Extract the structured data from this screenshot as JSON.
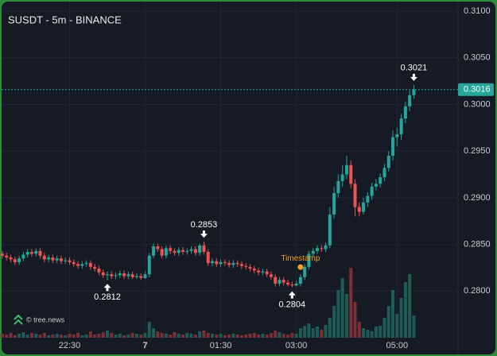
{
  "chart_data": {
    "type": "candlestick",
    "title": "SUSDT - 5m - BINANCE",
    "watermark": "© tree.news",
    "x": [
      "21:10",
      "21:15",
      "21:20",
      "21:25",
      "21:30",
      "21:35",
      "21:40",
      "21:45",
      "21:50",
      "21:55",
      "22:00",
      "22:05",
      "22:10",
      "22:15",
      "22:20",
      "22:25",
      "22:30",
      "22:35",
      "22:40",
      "22:45",
      "22:50",
      "22:55",
      "23:00",
      "23:05",
      "23:10",
      "23:15",
      "23:20",
      "23:25",
      "23:30",
      "23:35",
      "23:40",
      "23:45",
      "23:50",
      "23:55",
      "00:00",
      "00:05",
      "00:10",
      "00:15",
      "00:20",
      "00:25",
      "00:30",
      "00:35",
      "00:40",
      "00:45",
      "00:50",
      "00:55",
      "01:00",
      "01:05",
      "01:10",
      "01:15",
      "01:20",
      "01:25",
      "01:30",
      "01:35",
      "01:40",
      "01:45",
      "01:50",
      "01:55",
      "02:00",
      "02:05",
      "02:10",
      "02:15",
      "02:20",
      "02:25",
      "02:30",
      "02:35",
      "02:40",
      "02:45",
      "02:50",
      "02:55",
      "03:00",
      "03:05",
      "03:10",
      "03:15",
      "03:20",
      "03:25",
      "03:30",
      "03:35",
      "03:40",
      "03:45",
      "03:50",
      "03:55",
      "04:00",
      "04:05",
      "04:10",
      "04:15",
      "04:20",
      "04:25",
      "04:30",
      "04:35",
      "04:40",
      "04:45",
      "04:50",
      "04:55",
      "05:00",
      "05:05",
      "05:10",
      "05:15",
      "05:20"
    ],
    "open": [
      0.284,
      0.2838,
      0.2836,
      0.2834,
      0.2831,
      0.2835,
      0.2839,
      0.2842,
      0.284,
      0.2843,
      0.2838,
      0.2834,
      0.2836,
      0.2833,
      0.2835,
      0.2832,
      0.2833,
      0.2831,
      0.2829,
      0.2827,
      0.2829,
      0.283,
      0.2826,
      0.2824,
      0.282,
      0.2817,
      0.2818,
      0.2816,
      0.2817,
      0.2819,
      0.2816,
      0.2818,
      0.2815,
      0.2816,
      0.2814,
      0.2818,
      0.2838,
      0.2848,
      0.2845,
      0.2838,
      0.2846,
      0.2843,
      0.2841,
      0.2844,
      0.2842,
      0.2843,
      0.2845,
      0.2841,
      0.2849,
      0.2842,
      0.283,
      0.2832,
      0.2829,
      0.2831,
      0.283,
      0.2828,
      0.283,
      0.2829,
      0.2827,
      0.2826,
      0.2824,
      0.2822,
      0.282,
      0.2821,
      0.2818,
      0.2815,
      0.2808,
      0.2812,
      0.2809,
      0.2807,
      0.2806,
      0.2808,
      0.2815,
      0.2826,
      0.284,
      0.2843,
      0.2846,
      0.2845,
      0.2849,
      0.2882,
      0.2905,
      0.2918,
      0.2925,
      0.2935,
      0.2915,
      0.289,
      0.2885,
      0.2895,
      0.2902,
      0.2912,
      0.2915,
      0.2922,
      0.2932,
      0.2945,
      0.2965,
      0.2968,
      0.2985,
      0.2998,
      0.301
    ],
    "high": [
      0.2843,
      0.2841,
      0.2839,
      0.2837,
      0.2838,
      0.2842,
      0.2845,
      0.2845,
      0.2846,
      0.2846,
      0.2841,
      0.2839,
      0.2839,
      0.2838,
      0.2838,
      0.2836,
      0.2836,
      0.2834,
      0.2832,
      0.2832,
      0.2833,
      0.2833,
      0.2829,
      0.2827,
      0.2823,
      0.2821,
      0.2821,
      0.282,
      0.2822,
      0.2822,
      0.2821,
      0.2821,
      0.2819,
      0.2819,
      0.2821,
      0.2841,
      0.2851,
      0.2851,
      0.2848,
      0.2849,
      0.2849,
      0.2846,
      0.2847,
      0.2847,
      0.2846,
      0.2848,
      0.2848,
      0.2851,
      0.2853,
      0.2845,
      0.2835,
      0.2835,
      0.2834,
      0.2834,
      0.2833,
      0.2833,
      0.2833,
      0.2832,
      0.283,
      0.2829,
      0.2827,
      0.2825,
      0.2824,
      0.2824,
      0.2821,
      0.2818,
      0.2815,
      0.2815,
      0.2812,
      0.281,
      0.2811,
      0.2818,
      0.2829,
      0.2843,
      0.2846,
      0.2849,
      0.2849,
      0.2852,
      0.289,
      0.2912,
      0.2925,
      0.2935,
      0.2945,
      0.294,
      0.292,
      0.2895,
      0.29,
      0.2906,
      0.2916,
      0.292,
      0.2926,
      0.2936,
      0.295,
      0.2972,
      0.2975,
      0.299,
      0.3003,
      0.3015,
      0.3021
    ],
    "low": [
      0.2835,
      0.2833,
      0.2831,
      0.2828,
      0.2828,
      0.2832,
      0.2836,
      0.2837,
      0.2837,
      0.2835,
      0.2831,
      0.2831,
      0.283,
      0.283,
      0.2829,
      0.2829,
      0.2828,
      0.2826,
      0.2824,
      0.2824,
      0.2826,
      0.2823,
      0.2821,
      0.2817,
      0.2814,
      0.2812,
      0.2813,
      0.2813,
      0.2814,
      0.2813,
      0.2813,
      0.2813,
      0.2813,
      0.2812,
      0.2813,
      0.2815,
      0.2835,
      0.2842,
      0.2835,
      0.2835,
      0.284,
      0.2838,
      0.2838,
      0.2839,
      0.2839,
      0.284,
      0.2838,
      0.2838,
      0.2839,
      0.2827,
      0.2827,
      0.2826,
      0.2826,
      0.2827,
      0.2825,
      0.2825,
      0.2826,
      0.2824,
      0.2823,
      0.2821,
      0.2819,
      0.2817,
      0.2817,
      0.2815,
      0.2812,
      0.2805,
      0.2805,
      0.2806,
      0.2805,
      0.2804,
      0.2805,
      0.2805,
      0.2812,
      0.2823,
      0.2837,
      0.284,
      0.2842,
      0.2842,
      0.2846,
      0.2878,
      0.29,
      0.2912,
      0.292,
      0.291,
      0.288,
      0.288,
      0.2882,
      0.289,
      0.2898,
      0.2908,
      0.2911,
      0.2918,
      0.2928,
      0.294,
      0.2955,
      0.2962,
      0.298,
      0.2993,
      0.3006
    ],
    "close": [
      0.2838,
      0.2836,
      0.2834,
      0.2831,
      0.2835,
      0.2839,
      0.2842,
      0.284,
      0.2843,
      0.2838,
      0.2834,
      0.2836,
      0.2833,
      0.2835,
      0.2832,
      0.2833,
      0.2831,
      0.2829,
      0.2827,
      0.2829,
      0.283,
      0.2826,
      0.2824,
      0.282,
      0.2817,
      0.2818,
      0.2816,
      0.2817,
      0.2819,
      0.2816,
      0.2818,
      0.2815,
      0.2816,
      0.2814,
      0.2818,
      0.2838,
      0.2848,
      0.2845,
      0.2838,
      0.2846,
      0.2843,
      0.2841,
      0.2844,
      0.2842,
      0.2843,
      0.2845,
      0.2841,
      0.2849,
      0.2842,
      0.283,
      0.2832,
      0.2829,
      0.2831,
      0.283,
      0.2828,
      0.283,
      0.2829,
      0.2827,
      0.2826,
      0.2824,
      0.2822,
      0.282,
      0.2821,
      0.2818,
      0.2815,
      0.2808,
      0.2812,
      0.2809,
      0.2807,
      0.2806,
      0.2808,
      0.2815,
      0.2826,
      0.284,
      0.2843,
      0.2846,
      0.2845,
      0.2849,
      0.2882,
      0.2905,
      0.2918,
      0.2925,
      0.2935,
      0.2915,
      0.289,
      0.2885,
      0.2895,
      0.2902,
      0.2912,
      0.2915,
      0.2922,
      0.2932,
      0.2945,
      0.2965,
      0.2968,
      0.2985,
      0.2998,
      0.301,
      0.3016
    ],
    "volume": [
      5,
      4,
      6,
      3,
      5,
      7,
      4,
      6,
      5,
      4,
      6,
      3,
      4,
      5,
      4,
      3,
      5,
      4,
      6,
      3,
      4,
      8,
      4,
      5,
      7,
      9,
      6,
      4,
      5,
      3,
      4,
      6,
      5,
      4,
      6,
      20,
      12,
      8,
      6,
      5,
      4,
      7,
      5,
      4,
      6,
      5,
      4,
      8,
      9,
      6,
      5,
      4,
      5,
      3,
      4,
      5,
      4,
      3,
      4,
      5,
      6,
      4,
      5,
      4,
      6,
      9,
      7,
      5,
      4,
      6,
      5,
      12,
      15,
      18,
      12,
      14,
      10,
      16,
      25,
      40,
      60,
      75,
      55,
      88,
      45,
      20,
      12,
      10,
      8,
      14,
      15,
      25,
      40,
      60,
      30,
      50,
      70,
      80,
      28
    ],
    "up_color": "#26a69a",
    "down_color": "#ef5350",
    "volume_up_color": "#1d5c57",
    "volume_down_color": "#7a2f35",
    "ylim": [
      0.275,
      0.3112
    ],
    "volume_lim": [
      0,
      100
    ],
    "yticks": [
      {
        "value": 0.28,
        "label": "0.2800"
      },
      {
        "value": 0.285,
        "label": "0.2850"
      },
      {
        "value": 0.29,
        "label": "0.2900"
      },
      {
        "value": 0.295,
        "label": "0.2950"
      },
      {
        "value": 0.3,
        "label": "0.3000"
      },
      {
        "value": 0.305,
        "label": "0.3050"
      },
      {
        "value": 0.31,
        "label": "0.3100"
      }
    ],
    "xticks": [
      "22:30",
      {
        "value": "00:00",
        "label": "7"
      },
      "01:30",
      "03:00",
      "05:00"
    ],
    "grid": true,
    "last_price": {
      "value": 0.3016,
      "label": "0.3016"
    },
    "annotations": [
      {
        "label": "0.2812",
        "value": 0.2812,
        "x": "23:15"
      },
      {
        "label": "0.2853",
        "value": 0.2853,
        "x": "01:10"
      },
      {
        "label": "0.2804",
        "value": 0.2804,
        "x": "02:55"
      },
      {
        "label": "0.3021",
        "value": 0.3021,
        "x": "05:20"
      }
    ],
    "marker": {
      "label": "Timestamp",
      "value": 0.28257,
      "x": "03:05",
      "color": "#f0a020"
    }
  }
}
